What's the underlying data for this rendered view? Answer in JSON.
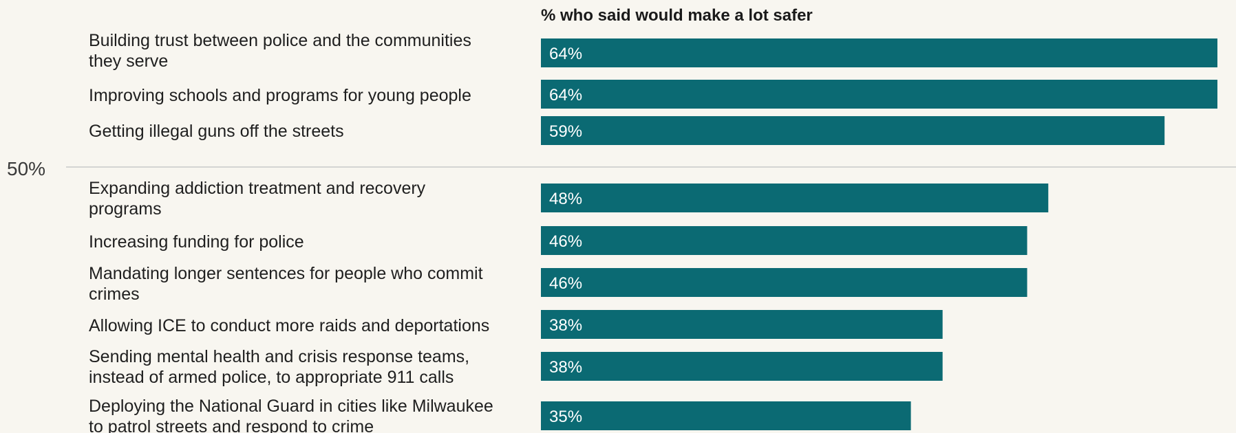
{
  "chart_data": {
    "type": "bar",
    "orientation": "horizontal",
    "header": "% who said would make a lot safer",
    "categories": [
      [
        "Building trust between police and the communities",
        "they serve"
      ],
      [
        "Improving schools and programs for young people"
      ],
      [
        "Getting illegal guns off the streets"
      ],
      [
        "Expanding addiction treatment and recovery",
        "programs"
      ],
      [
        "Increasing funding for police"
      ],
      [
        "Mandating longer sentences for people who commit",
        "crimes"
      ],
      [
        "Allowing ICE to conduct more raids and deportations"
      ],
      [
        "Sending mental health and crisis response teams,",
        "instead of armed police, to appropriate 911 calls"
      ],
      [
        "Deploying the National Guard in cities like Milwaukee",
        "to patrol streets and respond to crime"
      ]
    ],
    "values": [
      64,
      64,
      59,
      48,
      46,
      46,
      38,
      38,
      35
    ],
    "value_labels": [
      "64%",
      "64%",
      "59%",
      "48%",
      "46%",
      "46%",
      "38%",
      "38%",
      "35%"
    ],
    "reference_line": {
      "value": 50,
      "label": "50%"
    },
    "xlim": [
      0,
      64
    ],
    "grid": false,
    "legend": "none",
    "colors": {
      "bar": "#0b6a73",
      "background": "#f8f6f0",
      "reference_line": "#c8c8c8"
    }
  }
}
